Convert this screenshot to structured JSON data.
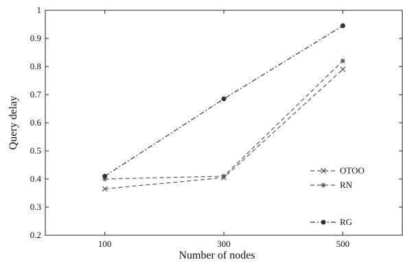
{
  "chart_data": {
    "type": "line",
    "title": "",
    "xlabel": "Number of nodes",
    "ylabel": "Query delay",
    "categories": [
      "100",
      "300",
      "500"
    ],
    "xlim": [
      0,
      600
    ],
    "ylim": [
      0.2,
      1.0
    ],
    "yticks": [
      "0.2",
      "0.3",
      "0.4",
      "0.5",
      "0.6",
      "0.7",
      "0.8",
      "0.9",
      "1"
    ],
    "grid": false,
    "legend_position": "lower-right",
    "series": [
      {
        "name": "OTOO",
        "x": [
          100,
          300,
          500
        ],
        "values": [
          0.365,
          0.405,
          0.79
        ],
        "marker": "x",
        "line_style": "dashed",
        "color": "#555555"
      },
      {
        "name": "RN",
        "x": [
          100,
          300,
          500
        ],
        "values": [
          0.4,
          0.41,
          0.82
        ],
        "marker": "asterisk",
        "line_style": "dashed",
        "color": "#555555"
      },
      {
        "name": "RG",
        "x": [
          100,
          300,
          500
        ],
        "values": [
          0.41,
          0.685,
          0.945
        ],
        "marker": "dot",
        "line_style": "dash-dot",
        "color": "#333333"
      }
    ]
  }
}
